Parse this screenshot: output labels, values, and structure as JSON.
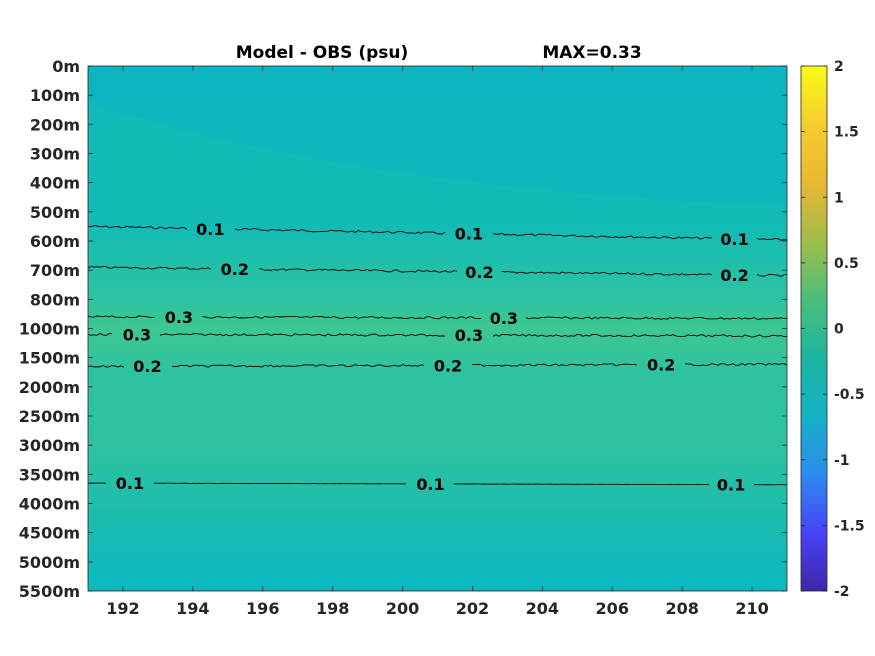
{
  "chart_data": {
    "type": "heatmap",
    "title": "Model - OBS (psu)",
    "max_label": "MAX=0.33",
    "x_ticks": [
      "192",
      "194",
      "196",
      "198",
      "200",
      "202",
      "204",
      "206",
      "208",
      "210"
    ],
    "x_tick_values": [
      192,
      194,
      196,
      198,
      200,
      202,
      204,
      206,
      208,
      210
    ],
    "xlim": [
      191,
      211
    ],
    "y_ticks": [
      "0m",
      "100m",
      "200m",
      "300m",
      "400m",
      "500m",
      "600m",
      "700m",
      "800m",
      "1000m",
      "1500m",
      "2000m",
      "2500m",
      "3000m",
      "3500m",
      "4000m",
      "4500m",
      "5000m",
      "5500m"
    ],
    "colorbar": {
      "ticks": [
        "2",
        "1.5",
        "1",
        "0.5",
        "0",
        "-0.5",
        "-1",
        "-1.5",
        "-2"
      ],
      "range": [
        -2,
        2
      ],
      "colormap": "parula",
      "colors": [
        "#3e26a8",
        "#4743f8",
        "#2d8cf0",
        "#15b1c6",
        "#1bb5a0",
        "#4bbf7c",
        "#a0bd4a",
        "#eab732",
        "#f6cd2f",
        "#f9fb15"
      ]
    },
    "contours": [
      {
        "level": 0.1,
        "depth_index": 5.5,
        "labels": [
          "0.1",
          "0.1",
          "0.1"
        ],
        "label_x": [
          194.5,
          201.9,
          209.5
        ]
      },
      {
        "level": 0.2,
        "depth_index": 6.9,
        "labels": [
          "0.2",
          "0.2",
          "0.2"
        ],
        "label_x": [
          195.2,
          202.2,
          209.5
        ]
      },
      {
        "level": 0.3,
        "depth_index": 8.6,
        "labels": [
          "0.3",
          "0.3"
        ],
        "label_x": [
          193.6,
          202.9
        ]
      },
      {
        "level": 0.3,
        "depth_index": 9.2,
        "labels": [
          "0.3",
          "0.3"
        ],
        "label_x": [
          192.4,
          201.9
        ]
      },
      {
        "level": 0.2,
        "depth_index": 10.3,
        "labels": [
          "0.2",
          "0.2",
          "0.2"
        ],
        "label_x": [
          192.7,
          201.3,
          207.4
        ]
      },
      {
        "level": 0.1,
        "depth_index": 14.3,
        "labels": [
          "0.1",
          "0.1",
          "0.1"
        ],
        "label_x": [
          192.2,
          200.8,
          209.4
        ]
      }
    ],
    "field_colors": {
      "surface": "#0db8c0",
      "upper": "#12bbb6",
      "mid": "#2ec3a0",
      "core": "#3dc792",
      "deep": "#1bbcae",
      "bottom": "#0ab9c2"
    }
  }
}
